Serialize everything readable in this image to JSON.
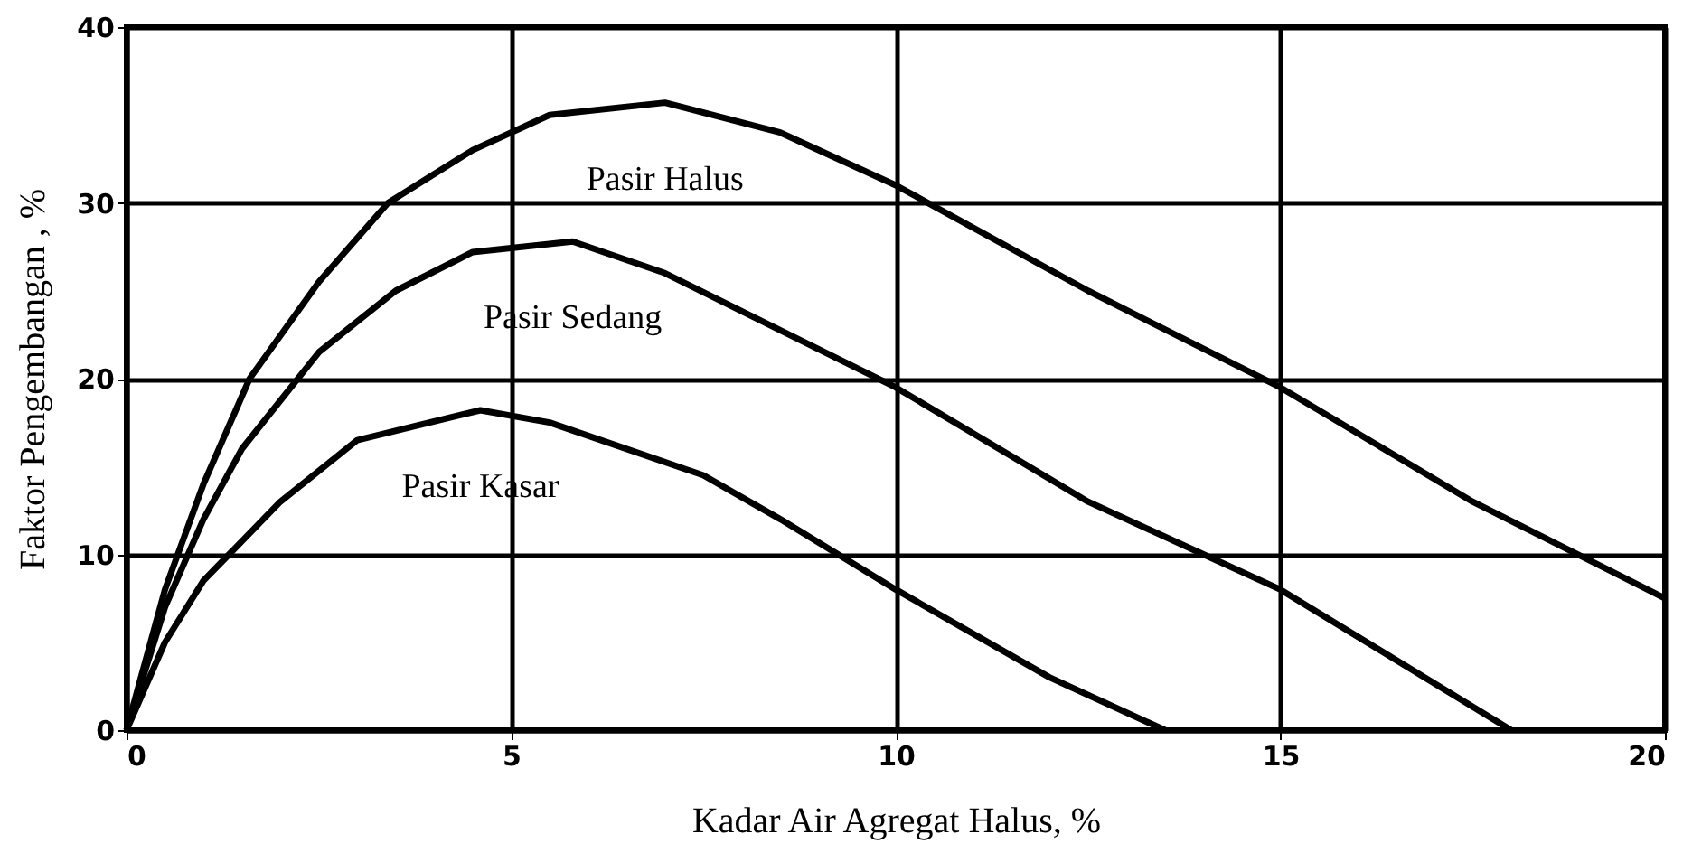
{
  "chart_data": {
    "type": "line",
    "xlabel": "Kadar Air Agregat Halus, %",
    "ylabel": "Faktor Pengembangan , %",
    "xlim": [
      0,
      20
    ],
    "ylim": [
      0,
      40
    ],
    "xticks": [
      0,
      5,
      10,
      15,
      20
    ],
    "yticks": [
      0,
      10,
      20,
      30,
      40
    ],
    "grid": true,
    "marker": "none",
    "line_style": "solid",
    "series": [
      {
        "name": "Pasir Halus",
        "color": "#000000",
        "x": [
          0,
          0.5,
          1,
          1.6,
          2.5,
          3.4,
          4.5,
          5.5,
          7,
          8.5,
          10,
          12.5,
          15,
          17.5,
          20
        ],
        "values": [
          0,
          8,
          14,
          20,
          25.5,
          30,
          33,
          35,
          35.7,
          34,
          31,
          25,
          19.5,
          13,
          7.5
        ]
      },
      {
        "name": "Pasir Sedang",
        "color": "#000000",
        "x": [
          0,
          0.5,
          1,
          1.5,
          2.5,
          3.5,
          4.5,
          5.8,
          7,
          10,
          12.5,
          14,
          15,
          18
        ],
        "values": [
          0,
          7,
          12,
          16,
          21.5,
          25,
          27.2,
          27.8,
          26,
          19.5,
          13,
          10,
          8,
          0
        ]
      },
      {
        "name": "Pasir Kasar",
        "color": "#000000",
        "x": [
          0,
          0.5,
          1,
          2,
          3,
          4.6,
          5.5,
          7.5,
          8.5,
          10,
          12,
          13.5
        ],
        "values": [
          0,
          5,
          8.5,
          13,
          16.5,
          18.2,
          17.5,
          14.5,
          12,
          8,
          3,
          0
        ]
      }
    ]
  }
}
